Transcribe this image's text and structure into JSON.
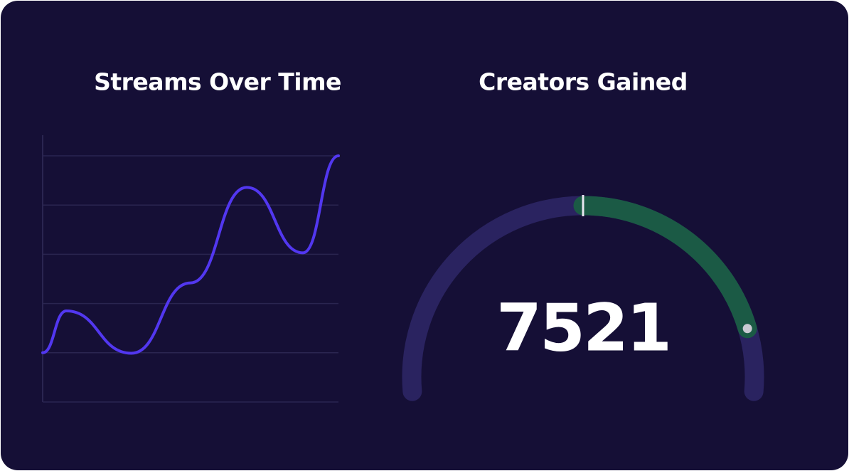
{
  "chart_data": [
    {
      "type": "line",
      "title": "Streams Over Time",
      "x": [
        0,
        8,
        30,
        50,
        69,
        88,
        100
      ],
      "values": [
        1,
        1.85,
        0.99,
        2.42,
        4.36,
        3.03,
        5
      ],
      "color": "#5237f0",
      "xlim": [
        0,
        100
      ],
      "ylim": [
        0,
        5.42
      ],
      "yticks": [
        0,
        1,
        2,
        3,
        4,
        5
      ],
      "grid": true
    },
    {
      "type": "gauge",
      "title": "Creators Gained",
      "value": 7521,
      "range": [
        0,
        8470
      ],
      "reference": 4235,
      "color": "#1b5a45",
      "track_color": "#2a2360"
    }
  ]
}
